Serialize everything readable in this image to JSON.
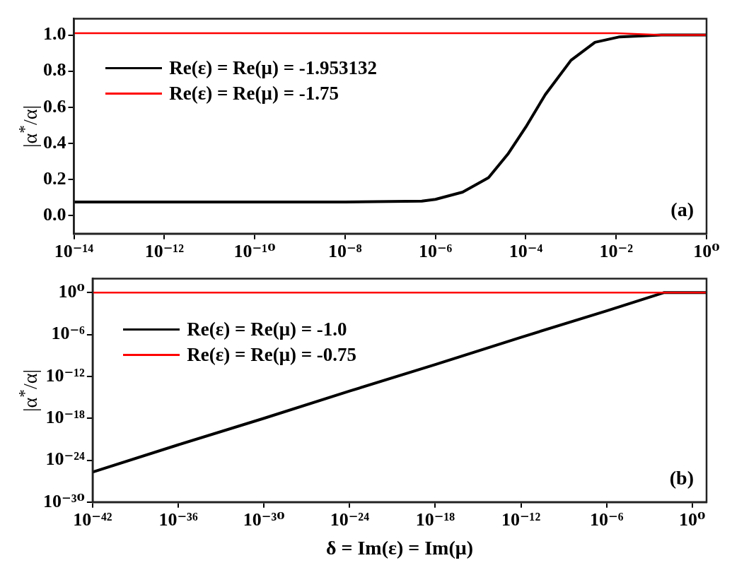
{
  "chart_data": [
    {
      "type": "line",
      "ylabel": "|α$^{*}$/α|",
      "log": "x",
      "grid": false,
      "legend": "top left",
      "marker": "none",
      "line_style": "solid",
      "annotations": [
        "(a)"
      ],
      "xlim": [
        1e-14,
        1
      ],
      "xticks": [
        {
          "value": 1e-14,
          "label": "10⁻¹⁴"
        },
        {
          "value": 1e-12,
          "label": "10⁻¹²"
        },
        {
          "value": 1e-10,
          "label": "10⁻¹⁰"
        },
        {
          "value": 1e-08,
          "label": "10⁻⁸"
        },
        {
          "value": 1e-06,
          "label": "10⁻⁶"
        },
        {
          "value": 0.0001,
          "label": "10⁻⁴"
        },
        {
          "value": 0.01,
          "label": "10⁻²"
        },
        {
          "value": 1,
          "label": "10⁰"
        }
      ],
      "ylim": [
        -0.1,
        1.09
      ],
      "yticks": [
        {
          "value": 0,
          "label": "0.0"
        },
        {
          "value": 0.2,
          "label": "0.2"
        },
        {
          "value": 0.4,
          "label": "0.4"
        },
        {
          "value": 0.6,
          "label": "0.6"
        },
        {
          "value": 0.8,
          "label": "0.8"
        },
        {
          "value": 1,
          "label": "1.0"
        }
      ],
      "series": [
        {
          "name": "Re(ε) = Re(μ) = -1.953132",
          "color": "#000000",
          "x": [
            1e-14,
            1e-08,
            5e-07,
            1e-06,
            4e-06,
            1.5e-05,
            4e-05,
            0.0001,
            0.00027,
            0.001,
            0.0034,
            0.012,
            0.1,
            1
          ],
          "values": [
            0.075,
            0.075,
            0.08,
            0.09,
            0.13,
            0.21,
            0.34,
            0.49,
            0.67,
            0.86,
            0.96,
            0.99,
            1.0,
            1.0
          ]
        },
        {
          "name": "Re(ε) = Re(μ) = -1.75",
          "color": "#ff0000",
          "x": [
            1e-14,
            1e-06,
            0.01,
            0.1,
            1
          ],
          "values": [
            1.01,
            1.01,
            1.01,
            1.0,
            1.0
          ]
        }
      ]
    },
    {
      "type": "line",
      "xlabel": "δ = Im(ε) = Im(μ)",
      "ylabel": "|α$^{*}$/α|",
      "log": "xy",
      "grid": false,
      "legend": "top left",
      "marker": "none",
      "line_style": "solid",
      "annotations": [
        "(b)"
      ],
      "xlim": [
        1e-42,
        10
      ],
      "xticks": [
        {
          "value": 1e-42,
          "label": "10⁻⁴²"
        },
        {
          "value": 1e-36,
          "label": "10⁻³⁶"
        },
        {
          "value": 1e-30,
          "label": "10⁻³⁰"
        },
        {
          "value": 1e-24,
          "label": "10⁻²⁴"
        },
        {
          "value": 1e-18,
          "label": "10⁻¹⁸"
        },
        {
          "value": 1e-12,
          "label": "10⁻¹²"
        },
        {
          "value": 1e-06,
          "label": "10⁻⁶"
        },
        {
          "value": 1,
          "label": "10⁰"
        }
      ],
      "ylim": [
        1e-30,
        100
      ],
      "yticks": [
        {
          "value": 1e-30,
          "label": "10⁻³⁰"
        },
        {
          "value": 1e-24,
          "label": "10⁻²⁴"
        },
        {
          "value": 1e-18,
          "label": "10⁻¹⁸"
        },
        {
          "value": 1e-12,
          "label": "10⁻¹²"
        },
        {
          "value": 1e-06,
          "label": "10⁻⁶"
        },
        {
          "value": 1,
          "label": "10⁰"
        }
      ],
      "series": [
        {
          "name": "Re(ε) = Re(μ) = -1.0",
          "color": "#000000",
          "x": [
            1e-42,
            1e-36,
            1e-30,
            1e-24,
            1e-18,
            1e-12,
            1e-06,
            0.01,
            10
          ],
          "values": [
            2e-26,
            1.6e-22,
            1e-18,
            8e-15,
            5e-11,
            4e-07,
            0.0025,
            1,
            1
          ]
        },
        {
          "name": "Re(ε) = Re(μ) = -0.75",
          "color": "#ff0000",
          "x": [
            1e-42,
            10
          ],
          "values": [
            1,
            1
          ]
        }
      ]
    }
  ]
}
